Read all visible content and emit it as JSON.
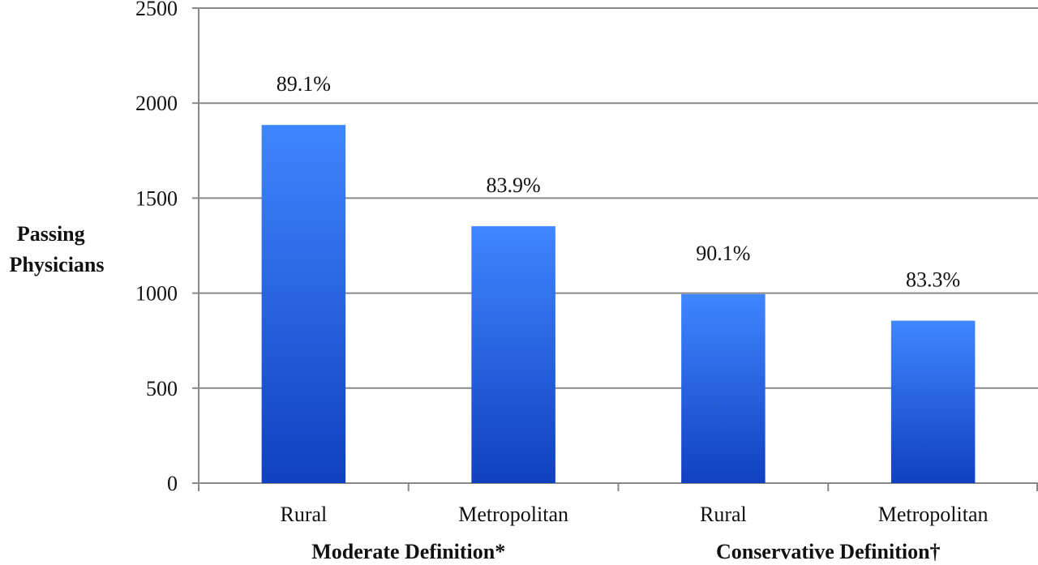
{
  "chart_data": {
    "type": "bar",
    "ylabel_lines": [
      "Passing",
      "Physicians"
    ],
    "xlabel": "",
    "title": "",
    "ylim": [
      0,
      2500
    ],
    "yticks": [
      0,
      500,
      1000,
      1500,
      2000,
      2500
    ],
    "categories": [
      "Rural",
      "Metropolitan",
      "Rural",
      "Metropolitan"
    ],
    "groups": [
      {
        "label": "Moderate Definition*",
        "categories": [
          "Rural",
          "Metropolitan"
        ]
      },
      {
        "label": "Conservative Definition†",
        "categories": [
          "Rural",
          "Metropolitan"
        ]
      }
    ],
    "values": [
      1885,
      1352,
      995,
      855
    ],
    "data_labels": [
      "89.1%",
      "83.9%",
      "90.1%",
      "83.3%"
    ],
    "grid": true,
    "legend": "none",
    "bar_color_top": "#3f86ff",
    "bar_color_bottom": "#1040c0",
    "grid_color": "#888888"
  }
}
